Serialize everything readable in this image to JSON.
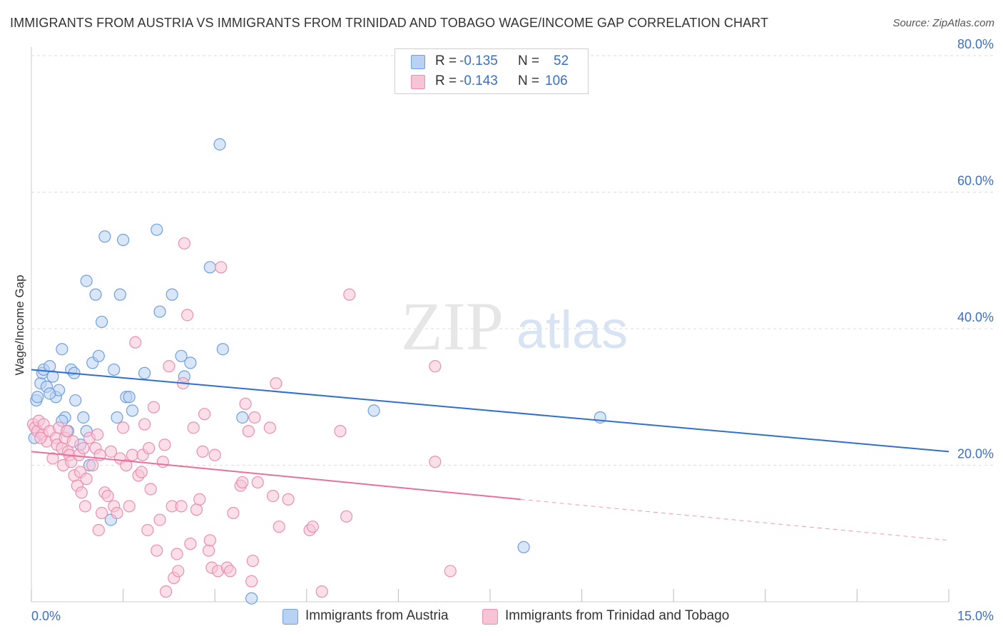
{
  "header": {
    "title": "IMMIGRANTS FROM AUSTRIA VS IMMIGRANTS FROM TRINIDAD AND TOBAGO WAGE/INCOME GAP CORRELATION CHART",
    "source": "Source: ZipAtlas.com"
  },
  "watermark": {
    "zip": "ZIP",
    "atlas": "atlas"
  },
  "legend_top": {
    "rows": [
      {
        "r_label": "R =",
        "r_value": "-0.135",
        "n_label": "N =",
        "n_value": "52"
      },
      {
        "r_label": "R =",
        "r_value": "-0.143",
        "n_label": "N =",
        "n_value": "106"
      }
    ]
  },
  "chart_data": {
    "type": "scatter",
    "title": "IMMIGRANTS FROM AUSTRIA VS IMMIGRANTS FROM TRINIDAD AND TOBAGO WAGE/INCOME GAP CORRELATION CHART",
    "xlabel": "",
    "ylabel": "Wage/Income Gap",
    "xlim": [
      0,
      15
    ],
    "ylim": [
      0,
      80
    ],
    "x_tick_labels": [
      "0.0%",
      "15.0%"
    ],
    "y_ticks": [
      20,
      40,
      60,
      80
    ],
    "y_tick_labels": [
      "20.0%",
      "40.0%",
      "60.0%",
      "80.0%"
    ],
    "grid": true,
    "legend_position": "bottom",
    "series": [
      {
        "name": "Immigrants from Austria",
        "color": "#6f9fe0",
        "fill": "#b9d1f3",
        "trend": {
          "x": [
            0,
            15
          ],
          "y": [
            34.0,
            22.0
          ]
        },
        "points": [
          [
            0.05,
            24.0
          ],
          [
            0.08,
            29.5
          ],
          [
            0.1,
            30.0
          ],
          [
            0.15,
            32.0
          ],
          [
            0.18,
            33.5
          ],
          [
            0.2,
            34.0
          ],
          [
            0.25,
            31.5
          ],
          [
            0.3,
            34.5
          ],
          [
            0.35,
            33.0
          ],
          [
            0.4,
            30.0
          ],
          [
            0.45,
            31.0
          ],
          [
            0.5,
            37.0
          ],
          [
            0.55,
            27.0
          ],
          [
            0.6,
            25.0
          ],
          [
            0.65,
            34.0
          ],
          [
            0.7,
            33.5
          ],
          [
            0.72,
            29.5
          ],
          [
            0.8,
            23.0
          ],
          [
            0.85,
            27.0
          ],
          [
            0.9,
            47.0
          ],
          [
            0.95,
            20.0
          ],
          [
            1.0,
            35.0
          ],
          [
            1.05,
            45.0
          ],
          [
            1.1,
            36.0
          ],
          [
            1.15,
            41.0
          ],
          [
            1.2,
            53.5
          ],
          [
            1.3,
            12.0
          ],
          [
            1.35,
            34.0
          ],
          [
            1.4,
            27.0
          ],
          [
            1.45,
            45.0
          ],
          [
            1.5,
            53.0
          ],
          [
            1.55,
            30.0
          ],
          [
            1.6,
            30.0
          ],
          [
            1.65,
            28.0
          ],
          [
            1.85,
            33.5
          ],
          [
            2.05,
            54.5
          ],
          [
            2.1,
            42.5
          ],
          [
            2.3,
            45.0
          ],
          [
            2.45,
            36.0
          ],
          [
            2.6,
            35.0
          ],
          [
            2.5,
            33.0
          ],
          [
            2.92,
            49.0
          ],
          [
            3.08,
            67.0
          ],
          [
            3.13,
            37.0
          ],
          [
            3.45,
            27.0
          ],
          [
            3.6,
            0.5
          ],
          [
            5.6,
            28.0
          ],
          [
            9.3,
            27.0
          ],
          [
            8.05,
            8.0
          ],
          [
            0.3,
            30.5
          ],
          [
            0.5,
            26.5
          ],
          [
            0.9,
            25.0
          ]
        ]
      },
      {
        "name": "Immigrants from Trinidad and Tobago",
        "color": "#ea8fb0",
        "fill": "#f7c4d6",
        "trend": {
          "x": [
            0,
            8.0,
            15
          ],
          "y": [
            22.0,
            15.0,
            9.0
          ],
          "solid_until_x": 8.0
        },
        "points": [
          [
            0.03,
            26.0
          ],
          [
            0.06,
            25.5
          ],
          [
            0.1,
            25.0
          ],
          [
            0.12,
            26.5
          ],
          [
            0.18,
            24.5
          ],
          [
            0.2,
            26.0
          ],
          [
            0.25,
            23.5
          ],
          [
            0.3,
            25.0
          ],
          [
            0.35,
            21.0
          ],
          [
            0.4,
            24.0
          ],
          [
            0.42,
            23.0
          ],
          [
            0.45,
            25.5
          ],
          [
            0.5,
            22.5
          ],
          [
            0.52,
            20.0
          ],
          [
            0.55,
            24.0
          ],
          [
            0.6,
            22.0
          ],
          [
            0.62,
            21.5
          ],
          [
            0.65,
            20.5
          ],
          [
            0.68,
            23.5
          ],
          [
            0.7,
            18.5
          ],
          [
            0.75,
            17.0
          ],
          [
            0.78,
            21.5
          ],
          [
            0.8,
            19.0
          ],
          [
            0.82,
            16.0
          ],
          [
            0.85,
            22.5
          ],
          [
            0.88,
            14.0
          ],
          [
            0.9,
            18.0
          ],
          [
            0.95,
            24.0
          ],
          [
            1.0,
            20.0
          ],
          [
            1.05,
            22.5
          ],
          [
            1.1,
            10.5
          ],
          [
            1.12,
            21.5
          ],
          [
            1.15,
            13.0
          ],
          [
            1.2,
            16.0
          ],
          [
            1.25,
            15.5
          ],
          [
            1.3,
            22.0
          ],
          [
            1.35,
            14.0
          ],
          [
            1.4,
            13.0
          ],
          [
            1.45,
            21.0
          ],
          [
            1.5,
            25.5
          ],
          [
            1.55,
            20.0
          ],
          [
            1.6,
            14.0
          ],
          [
            1.65,
            21.5
          ],
          [
            1.7,
            38.0
          ],
          [
            1.75,
            18.5
          ],
          [
            1.8,
            19.0
          ],
          [
            1.82,
            21.5
          ],
          [
            1.85,
            26.0
          ],
          [
            1.9,
            10.5
          ],
          [
            1.95,
            16.5
          ],
          [
            2.0,
            28.5
          ],
          [
            2.05,
            7.5
          ],
          [
            2.1,
            12.0
          ],
          [
            2.15,
            20.5
          ],
          [
            2.18,
            23.0
          ],
          [
            2.2,
            1.5
          ],
          [
            2.25,
            34.5
          ],
          [
            2.3,
            14.0
          ],
          [
            2.33,
            3.5
          ],
          [
            2.38,
            7.0
          ],
          [
            2.4,
            4.5
          ],
          [
            2.45,
            14.0
          ],
          [
            2.48,
            32.0
          ],
          [
            2.5,
            52.5
          ],
          [
            2.55,
            42.0
          ],
          [
            2.6,
            8.5
          ],
          [
            2.65,
            25.5
          ],
          [
            2.7,
            13.5
          ],
          [
            2.75,
            15.0
          ],
          [
            2.8,
            22.0
          ],
          [
            2.83,
            27.5
          ],
          [
            2.9,
            7.5
          ],
          [
            2.92,
            9.0
          ],
          [
            2.95,
            5.0
          ],
          [
            3.0,
            21.5
          ],
          [
            3.05,
            4.5
          ],
          [
            3.1,
            49.0
          ],
          [
            3.2,
            5.0
          ],
          [
            3.25,
            4.5
          ],
          [
            3.3,
            13.0
          ],
          [
            3.42,
            17.0
          ],
          [
            3.45,
            17.5
          ],
          [
            3.5,
            29.0
          ],
          [
            3.55,
            25.0
          ],
          [
            3.6,
            3.0
          ],
          [
            3.62,
            6.0
          ],
          [
            3.65,
            27.0
          ],
          [
            3.7,
            17.5
          ],
          [
            3.9,
            25.5
          ],
          [
            3.95,
            15.5
          ],
          [
            4.0,
            32.0
          ],
          [
            4.05,
            11.0
          ],
          [
            4.2,
            15.0
          ],
          [
            4.55,
            10.5
          ],
          [
            4.6,
            11.0
          ],
          [
            4.75,
            1.5
          ],
          [
            5.05,
            25.0
          ],
          [
            5.15,
            12.5
          ],
          [
            5.2,
            45.0
          ],
          [
            6.6,
            20.5
          ],
          [
            6.6,
            34.5
          ],
          [
            6.85,
            4.5
          ],
          [
            0.15,
            24.0
          ],
          [
            0.58,
            25.0
          ],
          [
            1.08,
            24.5
          ],
          [
            1.92,
            22.5
          ]
        ]
      }
    ]
  }
}
